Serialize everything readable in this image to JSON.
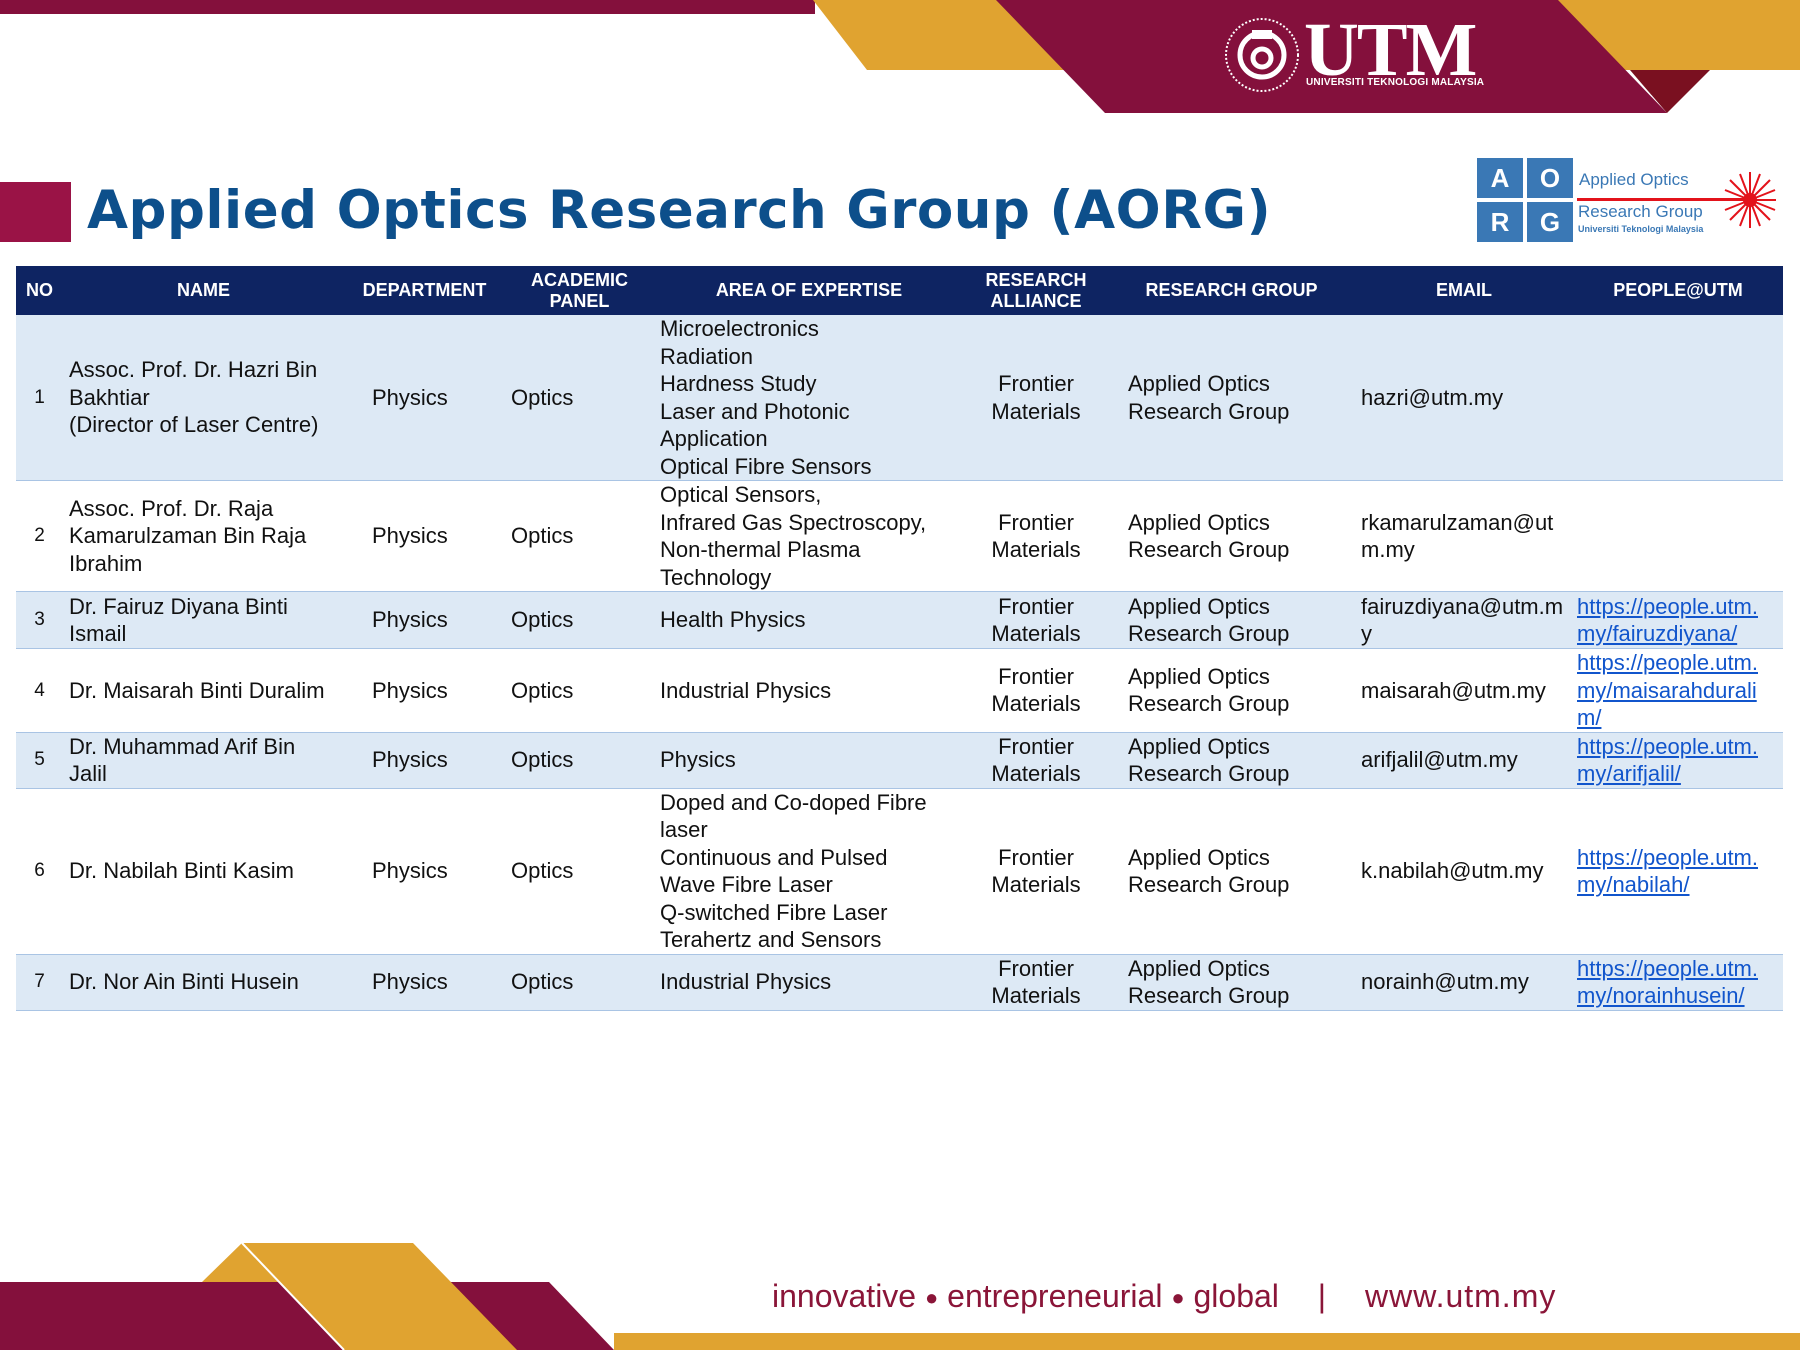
{
  "header": {
    "logo_text": "UTM",
    "logo_subtitle": "UNIVERSITI TEKNOLOGI MALAYSIA",
    "title": "Applied Optics Research Group (AORG)",
    "aorg_logo": {
      "letters": [
        "A",
        "O",
        "R",
        "G"
      ],
      "line1": "Applied Optics",
      "line2": "Research Group",
      "line3": "Universiti Teknologi Malaysia"
    }
  },
  "table": {
    "columns": [
      "NO",
      "NAME",
      "DEPARTMENT",
      "ACADEMIC PANEL",
      "AREA OF EXPERTISE",
      "RESEARCH ALLIANCE",
      "RESEARCH GROUP",
      "EMAIL",
      "PEOPLE@UTM"
    ],
    "rows": [
      {
        "no": "1",
        "name": [
          "Assoc. Prof. Dr. Hazri Bin",
          "Bakhtiar",
          "(Director of Laser Centre)"
        ],
        "department": "Physics",
        "panel": "Optics",
        "expertise": [
          "Microelectronics",
          "Radiation",
          "Hardness Study",
          "Laser and Photonic",
          "Application",
          "Optical Fibre Sensors"
        ],
        "alliance": [
          "Frontier",
          "Materials"
        ],
        "group": [
          "Applied Optics",
          "Research Group"
        ],
        "email": "hazri@utm.my",
        "people": []
      },
      {
        "no": "2",
        "name": [
          "Assoc. Prof. Dr. Raja",
          "Kamarulzaman Bin Raja",
          "Ibrahim"
        ],
        "department": "Physics",
        "panel": "Optics",
        "expertise": [
          "Optical Sensors,",
          "Infrared Gas Spectroscopy,",
          "Non-thermal Plasma",
          "Technology"
        ],
        "alliance": [
          "Frontier",
          "Materials"
        ],
        "group": [
          "Applied Optics",
          "Research Group"
        ],
        "email": "rkamarulzaman@utm.my",
        "people": []
      },
      {
        "no": "3",
        "name": [
          "Dr. Fairuz Diyana Binti",
          "Ismail"
        ],
        "department": "Physics",
        "panel": "Optics",
        "expertise": [
          "Health Physics"
        ],
        "alliance": [
          "Frontier",
          "Materials"
        ],
        "group": [
          "Applied Optics",
          "Research Group"
        ],
        "email": "fairuzdiyana@utm.my",
        "people": [
          "https://people.utm.",
          "my/fairuzdiyana/"
        ]
      },
      {
        "no": "4",
        "name": [
          "Dr. Maisarah Binti Duralim"
        ],
        "department": "Physics",
        "panel": "Optics",
        "expertise": [
          "Industrial Physics"
        ],
        "alliance": [
          "Frontier",
          "Materials"
        ],
        "group": [
          "Applied Optics",
          "Research Group"
        ],
        "email": "maisarah@utm.my",
        "people": [
          "https://people.utm.",
          "my/maisarahdurali",
          "m/"
        ]
      },
      {
        "no": "5",
        "name": [
          "Dr. Muhammad Arif Bin",
          "Jalil"
        ],
        "department": "Physics",
        "panel": "Optics",
        "expertise": [
          "Physics"
        ],
        "alliance": [
          "Frontier",
          "Materials"
        ],
        "group": [
          "Applied Optics",
          "Research Group"
        ],
        "email": "arifjalil@utm.my",
        "people": [
          "https://people.utm.",
          "my/arifjalil/"
        ]
      },
      {
        "no": "6",
        "name": [
          "Dr. Nabilah Binti Kasim"
        ],
        "department": "Physics",
        "panel": "Optics",
        "expertise": [
          "Doped and Co-doped Fibre",
          "laser",
          "Continuous and Pulsed",
          "Wave Fibre Laser",
          "Q-switched Fibre Laser",
          "Terahertz and Sensors"
        ],
        "alliance": [
          "Frontier",
          "Materials"
        ],
        "group": [
          "Applied Optics",
          "Research Group"
        ],
        "email": "k.nabilah@utm.my",
        "people": [
          "https://people.utm.",
          "my/nabilah/"
        ]
      },
      {
        "no": "7",
        "name": [
          "Dr. Nor Ain Binti Husein"
        ],
        "department": "Physics",
        "panel": "Optics",
        "expertise": [
          "Industrial Physics"
        ],
        "alliance": [
          "Frontier",
          "Materials"
        ],
        "group": [
          "Applied Optics",
          "Research Group"
        ],
        "email": "norainh@utm.my",
        "people": [
          "https://people.utm.",
          "my/norainhusein/"
        ]
      }
    ]
  },
  "footer": {
    "w1": "innovative",
    "w2": "entrepreneurial",
    "w3": "global",
    "sep": "|",
    "url": "www.utm.my"
  },
  "colors": {
    "maroon": "#84103c",
    "gold": "#e0a330",
    "navy": "#0e2462",
    "title_blue": "#0d4f8b",
    "row_alt": "#dde9f5"
  }
}
